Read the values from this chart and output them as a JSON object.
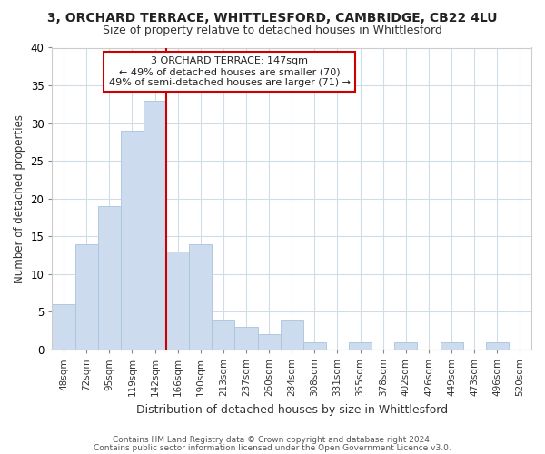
{
  "title1": "3, ORCHARD TERRACE, WHITTLESFORD, CAMBRIDGE, CB22 4LU",
  "title2": "Size of property relative to detached houses in Whittlesford",
  "xlabel": "Distribution of detached houses by size in Whittlesford",
  "ylabel": "Number of detached properties",
  "annotation_line1": "3 ORCHARD TERRACE: 147sqm",
  "annotation_line2": "← 49% of detached houses are smaller (70)",
  "annotation_line3": "49% of semi-detached houses are larger (71) →",
  "bar_labels": [
    "48sqm",
    "72sqm",
    "95sqm",
    "119sqm",
    "142sqm",
    "166sqm",
    "190sqm",
    "213sqm",
    "237sqm",
    "260sqm",
    "284sqm",
    "308sqm",
    "331sqm",
    "355sqm",
    "378sqm",
    "402sqm",
    "426sqm",
    "449sqm",
    "473sqm",
    "496sqm",
    "520sqm"
  ],
  "bar_values": [
    6,
    14,
    19,
    29,
    33,
    13,
    14,
    4,
    3,
    2,
    4,
    1,
    0,
    1,
    0,
    1,
    0,
    1,
    0,
    1,
    0
  ],
  "bar_color": "#ccdcee",
  "bar_edge_color": "#a8c4de",
  "grid_color": "#d0dce8",
  "background_color": "#ffffff",
  "fig_background_color": "#ffffff",
  "red_line_color": "#cc0000",
  "ylim": [
    0,
    40
  ],
  "yticks": [
    0,
    5,
    10,
    15,
    20,
    25,
    30,
    35,
    40
  ],
  "footer1": "Contains HM Land Registry data © Crown copyright and database right 2024.",
  "footer2": "Contains public sector information licensed under the Open Government Licence v3.0."
}
